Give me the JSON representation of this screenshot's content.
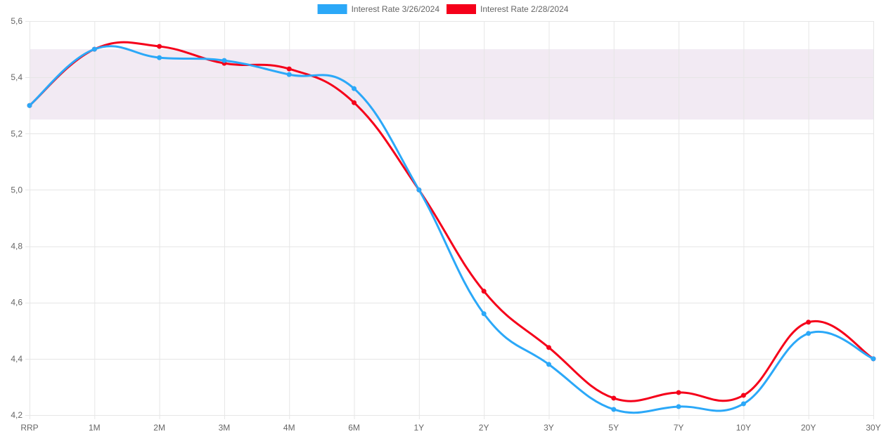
{
  "chart_data": {
    "type": "line",
    "categories": [
      "RRP",
      "1M",
      "2M",
      "3M",
      "4M",
      "6M",
      "1Y",
      "2Y",
      "3Y",
      "5Y",
      "7Y",
      "10Y",
      "20Y",
      "30Y"
    ],
    "series": [
      {
        "name": "Interest Rate 3/26/2024",
        "color": "#2ba8f8",
        "values": [
          5.3,
          5.5,
          5.47,
          5.46,
          5.41,
          5.36,
          5.0,
          4.56,
          4.38,
          4.22,
          4.23,
          4.24,
          4.49,
          4.4
        ]
      },
      {
        "name": "Interest Rate 2/28/2024",
        "color": "#f5001a",
        "values": [
          5.3,
          5.5,
          5.51,
          5.45,
          5.43,
          5.31,
          5.0,
          4.64,
          4.44,
          4.26,
          4.28,
          4.27,
          4.53,
          4.4
        ]
      }
    ],
    "ylim": [
      4.2,
      5.6
    ],
    "yticks": [
      "4,2",
      "4,4",
      "4,6",
      "4,8",
      "5,0",
      "5,2",
      "5,4",
      "5,6"
    ],
    "band": {
      "from": 5.25,
      "to": 5.5,
      "color": "#f2eaf3"
    },
    "grid": true,
    "legend_position": "top"
  }
}
